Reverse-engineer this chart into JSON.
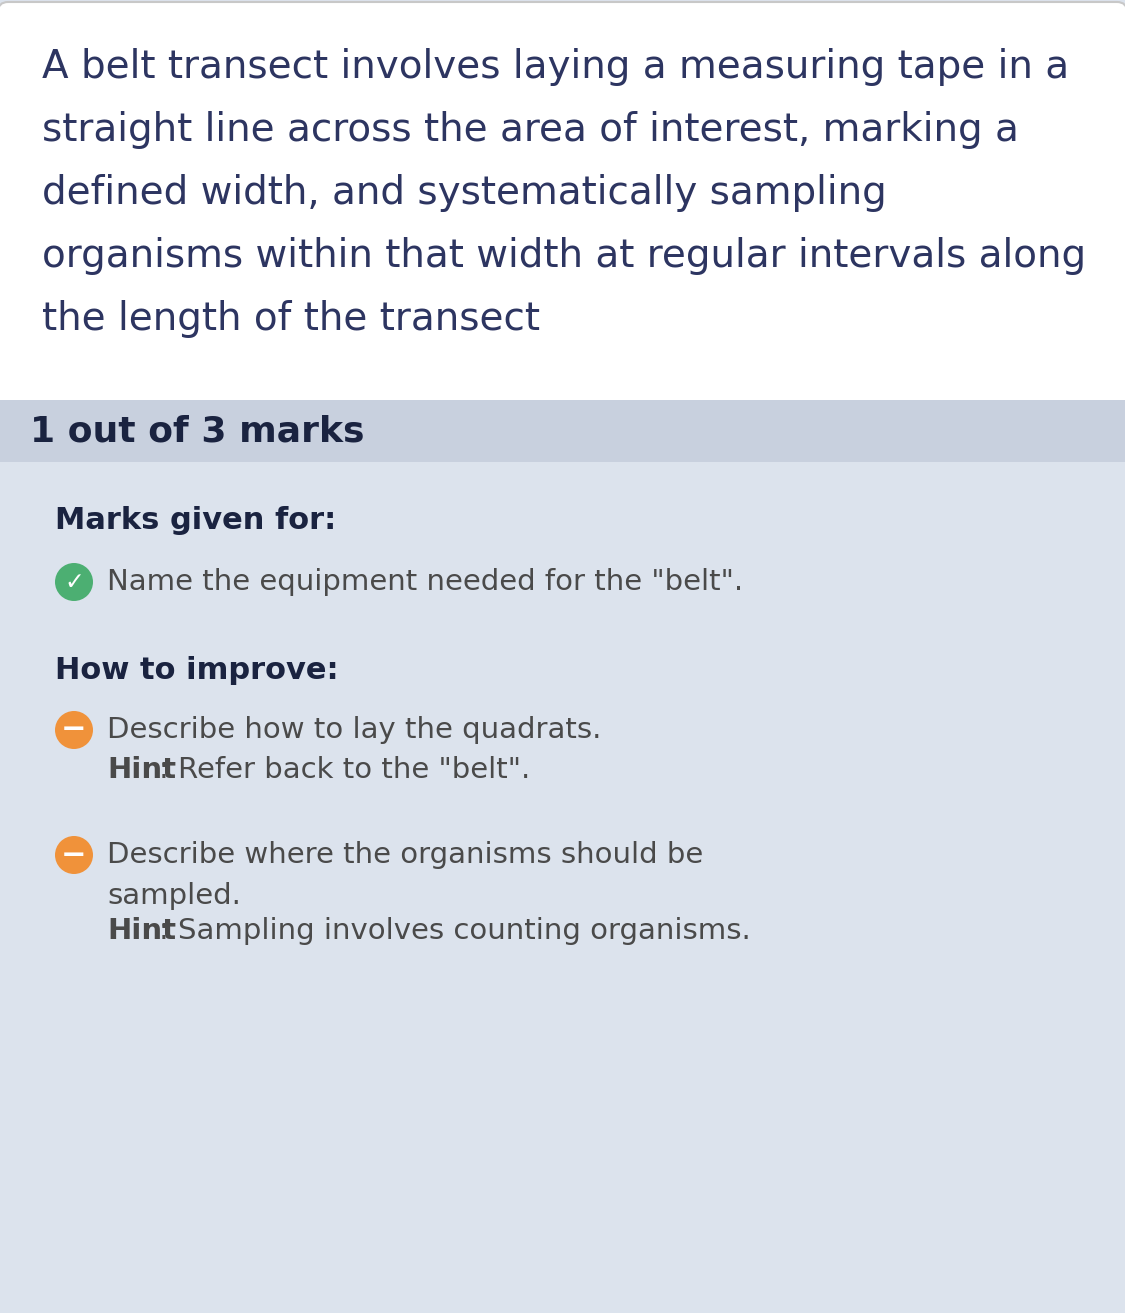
{
  "top_bg_color": "#ffffff",
  "bottom_bg_color": "#dce3ed",
  "top_border_color": "#c8c8c8",
  "score_bar_color": "#c8d0de",
  "main_text_color": "#2d3561",
  "main_text_fontsize": 28,
  "score_text": "1 out of 3 marks",
  "score_text_color": "#1a2340",
  "score_text_fontsize": 26,
  "marks_given_label": "Marks given for:",
  "marks_given_fontsize": 22,
  "how_to_improve_label": "How to improve:",
  "how_to_improve_fontsize": 22,
  "green_check_color": "#4caf72",
  "orange_minus_color": "#f0923a",
  "item_text_color": "#4a4a4a",
  "item_text_fontsize": 21,
  "hint_fontsize": 21,
  "mark_item": "Name the equipment needed for the \"belt\".",
  "main_lines": [
    "A belt transect involves laying a measuring tape in a",
    "straight line across the area of interest, marking a",
    "defined width, and systematically sampling",
    "organisms within that width at regular intervals along",
    "the length of the transect"
  ],
  "improve_items": [
    {
      "main": "Describe how to lay the quadrats.",
      "hint_bold": "Hint",
      "hint_rest": ": Refer back to the \"belt\"."
    },
    {
      "main": "Describe where the organisms should be\nsampled.",
      "hint_bold": "Hint",
      "hint_rest": ": Sampling involves counting organisms."
    }
  ]
}
